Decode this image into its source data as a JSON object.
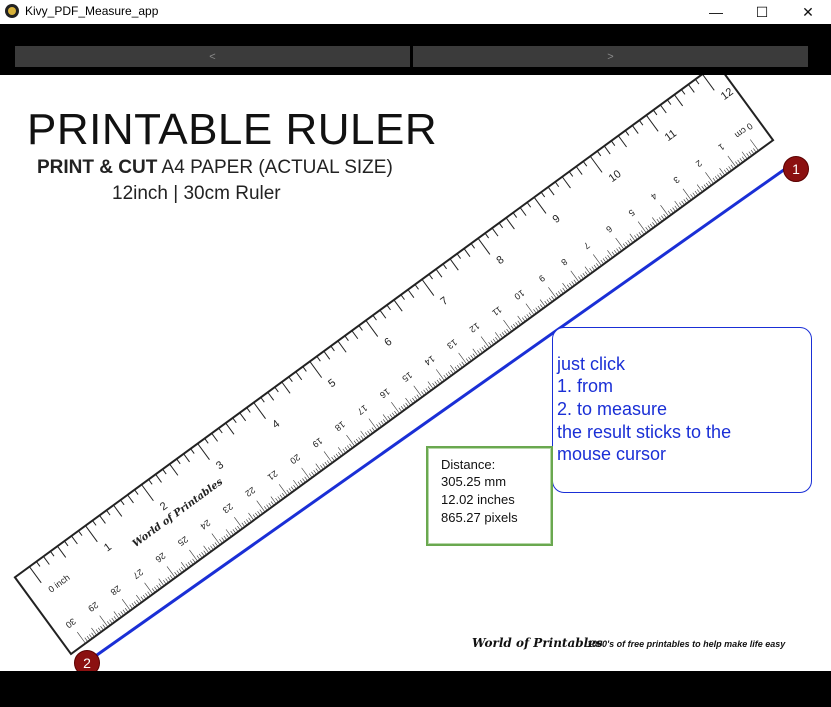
{
  "window": {
    "title": "Kivy_PDF_Measure_app",
    "controls": {
      "minimize": "—",
      "maximize": "☐",
      "close": "✕"
    }
  },
  "toolbar": {
    "prev_label": "<",
    "next_label": ">"
  },
  "document": {
    "heading": "PRINTABLE RULER",
    "subtitle_bold": "PRINT & CUT",
    "subtitle_rest": " A4 PAPER (ACTUAL SIZE)",
    "subtitle2": "12inch | 30cm Ruler",
    "ruler_inch_labels": [
      "0 inch",
      "1",
      "2",
      "3",
      "4",
      "5",
      "6",
      "7",
      "8",
      "9",
      "10",
      "11",
      "12"
    ],
    "ruler_cm_labels": [
      "30",
      "29",
      "28",
      "27",
      "26",
      "25",
      "24",
      "23",
      "22",
      "21",
      "20",
      "19",
      "18",
      "17",
      "16",
      "15",
      "14",
      "13",
      "12",
      "11",
      "10",
      "9",
      "8",
      "7",
      "6",
      "5",
      "4",
      "3",
      "2",
      "1",
      "0 cm"
    ],
    "ruler_brand": "World of Printables",
    "footer_brand": "World of Printables",
    "footer_text": "1000's of free printables to help make life easy"
  },
  "help_bubble": {
    "lines": [
      "just click",
      "1. from",
      "2. to measure",
      "the result sticks to the",
      "mouse cursor"
    ]
  },
  "measurement": {
    "heading": "Distance:",
    "mm": "305.25 mm",
    "inches": "12.02 inches",
    "pixels": "865.27 pixels"
  },
  "markers": {
    "start": "1",
    "end": "2"
  },
  "colors": {
    "measure_line": "#1a2fd6",
    "marker": "#8b1010",
    "bubble_border": "#1a2fd6",
    "distance_border": "#6aa84f"
  }
}
